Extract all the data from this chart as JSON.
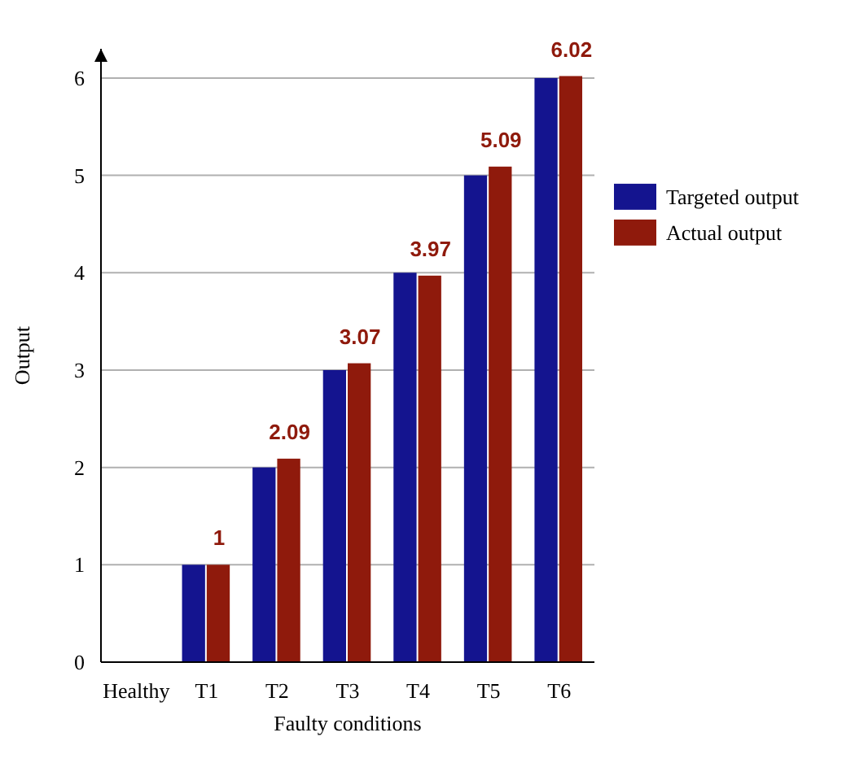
{
  "chart_data": {
    "type": "bar",
    "xlabel": "Faulty conditions",
    "ylabel": "Output",
    "categories": [
      "Healthy",
      "T1",
      "T2",
      "T3",
      "T4",
      "T5",
      "T6"
    ],
    "series": [
      {
        "name": "Targeted output",
        "color": "#14148f",
        "values": [
          0,
          1,
          2,
          3,
          4,
          5,
          6
        ]
      },
      {
        "name": "Actual output",
        "color": "#8f1a0c",
        "values": [
          0,
          1,
          2.09,
          3.07,
          3.97,
          5.09,
          6.02
        ],
        "value_labels": [
          null,
          "1",
          "2.09",
          "3.07",
          "3.97",
          "5.09",
          "6.02"
        ]
      }
    ],
    "ylim": [
      0,
      6.3
    ],
    "yticks": [
      0,
      1,
      2,
      3,
      4,
      5,
      6
    ],
    "grid": "y",
    "legend": "right"
  }
}
